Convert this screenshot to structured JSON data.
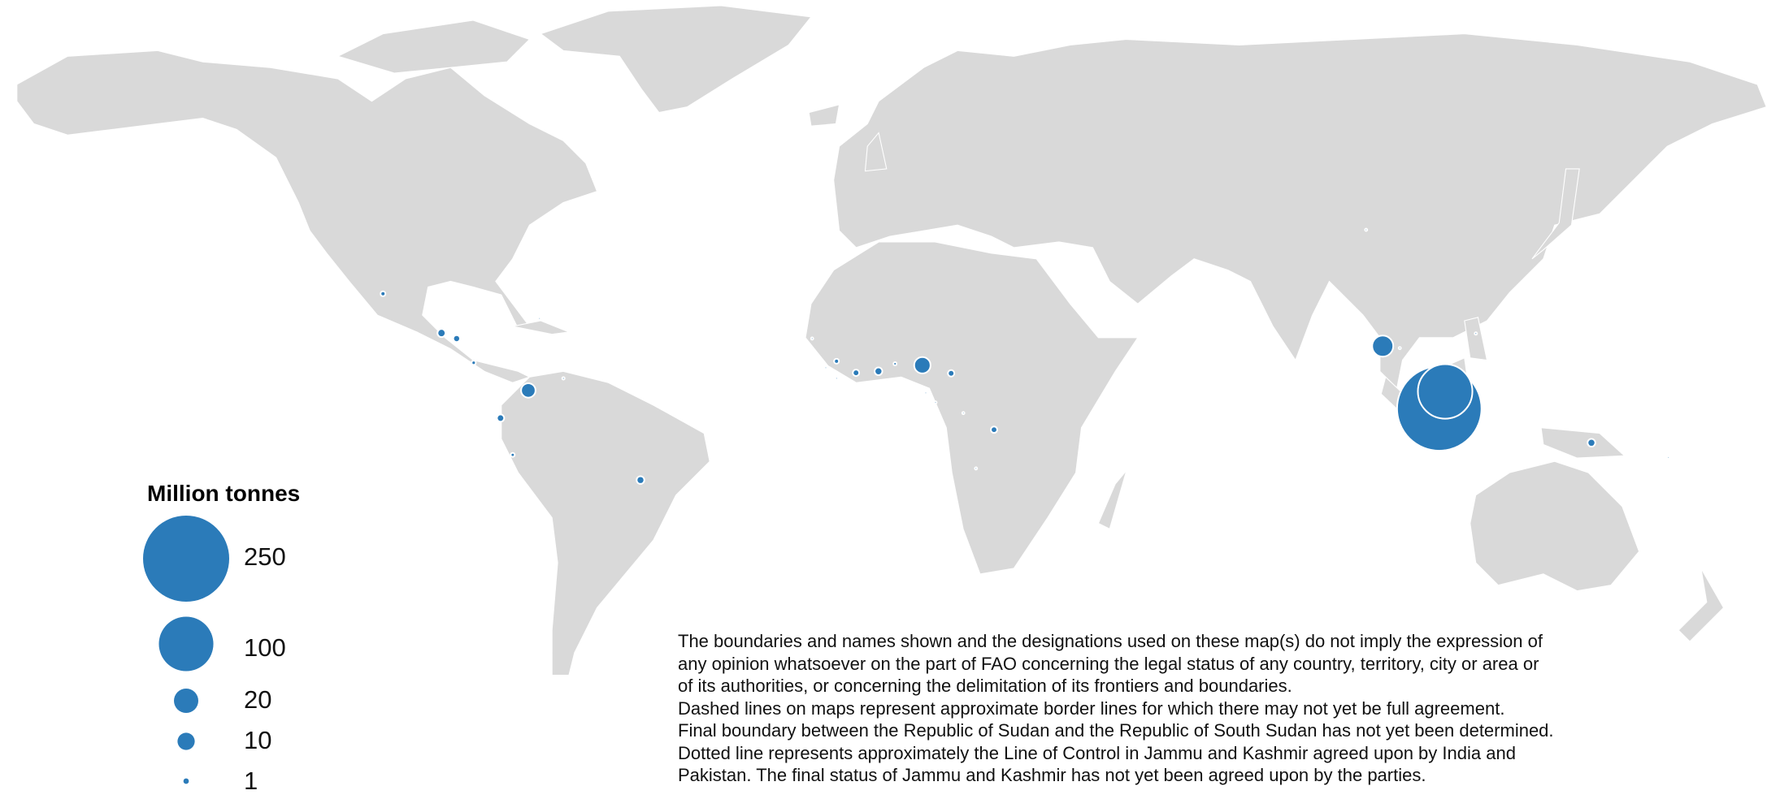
{
  "colors": {
    "land": "#d9d9d9",
    "borders": "#ffffff",
    "bubble": "#2b7bb9",
    "ocean": "#ffffff"
  },
  "legend": {
    "title": "Million tonnes",
    "items": [
      {
        "value": 250,
        "label": "250"
      },
      {
        "value": 100,
        "label": "100"
      },
      {
        "value": 20,
        "label": "20"
      },
      {
        "value": 10,
        "label": "10"
      },
      {
        "value": 1,
        "label": "1"
      }
    ]
  },
  "bubbles": [
    {
      "lon": 112.8,
      "lat": 0.3,
      "value": 240
    },
    {
      "lon": 114.0,
      "lat": 3.7,
      "value": 100
    },
    {
      "lon": 101.2,
      "lat": 12.7,
      "value": 15
    },
    {
      "lon": 6.8,
      "lat": 8.9,
      "value": 9
    },
    {
      "lon": -74.0,
      "lat": 3.9,
      "value": 7
    },
    {
      "lon": -91.8,
      "lat": 15.3,
      "value": 2.2
    },
    {
      "lon": -51.0,
      "lat": -13.9,
      "value": 2
    },
    {
      "lon": 144.0,
      "lat": -6.5,
      "value": 2
    },
    {
      "lon": -2.2,
      "lat": 7.7,
      "value": 2
    },
    {
      "lon": -79.7,
      "lat": -1.6,
      "value": 1.8
    },
    {
      "lon": -88.7,
      "lat": 14.2,
      "value": 1.6
    },
    {
      "lon": -6.8,
      "lat": 7.4,
      "value": 1.4
    },
    {
      "lon": 12.7,
      "lat": 7.3,
      "value": 1.4
    },
    {
      "lon": 21.5,
      "lat": -3.9,
      "value": 1.4
    },
    {
      "lon": -10.8,
      "lat": 9.7,
      "value": 0.8
    },
    {
      "lon": -103.8,
      "lat": 23.1,
      "value": 0.8
    },
    {
      "lon": -85.2,
      "lat": 9.4,
      "value": 0.6
    },
    {
      "lon": -77.2,
      "lat": -8.9,
      "value": 0.55
    },
    {
      "lon": 1.2,
      "lat": 9.2,
      "value": 0.35
    },
    {
      "lon": -66.8,
      "lat": 6.3,
      "value": 0.2
    },
    {
      "lon": 120.3,
      "lat": 15.2,
      "value": 0.2
    },
    {
      "lon": 159.8,
      "lat": -9.4,
      "value": 0.15
    },
    {
      "lon": 97.8,
      "lat": 35.8,
      "value": 0.15
    },
    {
      "lon": -71.7,
      "lat": 18.2,
      "value": 0.05
    },
    {
      "lon": -15.8,
      "lat": 14.2,
      "value": 0.05
    },
    {
      "lon": -13.0,
      "lat": 8.4,
      "value": 0.05
    },
    {
      "lon": -10.8,
      "lat": 6.3,
      "value": 0.05
    },
    {
      "lon": 7.5,
      "lat": 3.4,
      "value": 0.05
    },
    {
      "lon": 9.5,
      "lat": 1.5,
      "value": 0.05
    },
    {
      "lon": 15.2,
      "lat": -0.6,
      "value": 0.05
    },
    {
      "lon": 17.8,
      "lat": -11.6,
      "value": 0.05
    },
    {
      "lon": 104.7,
      "lat": 12.3,
      "value": 0.05
    }
  ],
  "disclaimer": {
    "lines": [
      "The boundaries and names shown and the designations used on these map(s) do not imply the expression of",
      "any opinion whatsoever on the part of FAO concerning the legal status of any country, territory, city or area or",
      "of its authorities, or concerning the delimitation of its frontiers and boundaries.",
      "Dashed lines on maps represent approximate border lines for which there may not yet be full agreement.",
      "Final boundary between the Republic of Sudan and the Republic of South Sudan has not yet been determined.",
      "Dotted line represents approximately the Line of Control in Jammu and Kashmir agreed upon by India and",
      "Pakistan. The final status of Jammu and Kashmir has not yet been agreed upon by the parties."
    ]
  }
}
